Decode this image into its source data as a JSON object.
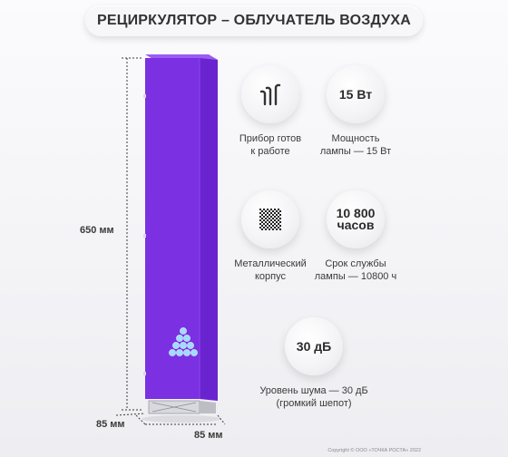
{
  "title": "РЕЦИРКУЛЯТОР – ОБЛУЧАТЕЛЬ ВОЗДУХА",
  "dimensions": {
    "height": "650 мм",
    "width_left": "85 мм",
    "width_right": "85 мм"
  },
  "features": [
    {
      "icon": "ready-status-icon",
      "label_line1": "Прибор готов",
      "label_line2": "к работе"
    },
    {
      "badge_text": "15 Вт",
      "label_line1": "Мощность",
      "label_line2": "лампы — 15 Вт"
    },
    {
      "icon": "metal-mesh-icon",
      "label_line1": "Металлический",
      "label_line2": "корпус"
    },
    {
      "badge_line1": "10 800",
      "badge_line2": "часов",
      "label_line1": "Срок службы",
      "label_line2": "лампы — 10800 ч"
    },
    {
      "badge_text": "30 дБ",
      "label_line1": "Уровень шума — 30 дБ",
      "label_line2": "(громкий шепот)"
    }
  ],
  "copyright": "Copyright © ООО «ТОЧКА РОСТА» 2022",
  "colors": {
    "device_front": "#7a2fe0",
    "device_side": "#5d1fb8",
    "device_top": "#8e4ff0",
    "led_blue": "#8fd6ff"
  }
}
